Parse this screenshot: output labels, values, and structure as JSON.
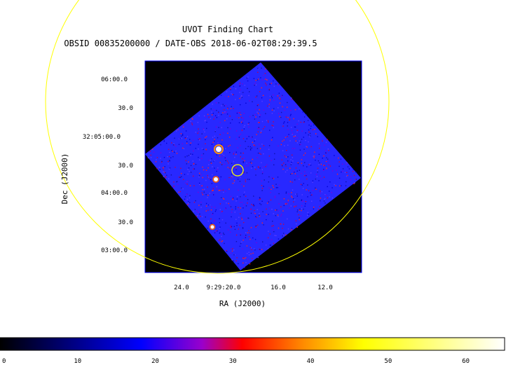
{
  "title": "UVOT Finding Chart",
  "subtitle": "OBSID 00835200000 / DATE-OBS 2018-06-02T08:29:39.5",
  "chart_data": {
    "type": "heatmap",
    "title": "UVOT Finding Chart",
    "subtitle": "OBSID 00835200000 / DATE-OBS 2018-06-02T08:29:39.5",
    "xlabel": "RA (J2000)",
    "ylabel": "Dec (J2000)",
    "x_ticks": [
      "24.0",
      "9:29:20.0",
      "16.0",
      "12.0"
    ],
    "y_ticks": [
      "06:00.0",
      "30.0",
      "32:05:00.0",
      "30.0",
      "04:00.0",
      "30.0",
      "03:00.0"
    ],
    "colorbar": {
      "ticks": [
        "0",
        "10",
        "20",
        "30",
        "40",
        "50",
        "60"
      ],
      "range": [
        0,
        65
      ],
      "stops": [
        {
          "v": 0,
          "color": "#000000"
        },
        {
          "v": 18,
          "color": "#0000ff"
        },
        {
          "v": 26,
          "color": "#9900cc"
        },
        {
          "v": 31,
          "color": "#ff0000"
        },
        {
          "v": 46,
          "color": "#ffff00"
        },
        {
          "v": 65,
          "color": "#ffffff"
        }
      ]
    },
    "colors": {
      "background": "#ffffff",
      "image_background": "#000000",
      "exposure_field": "#2828ff",
      "overlay_circles": "#ffff00",
      "frame": "#0000ff"
    }
  }
}
